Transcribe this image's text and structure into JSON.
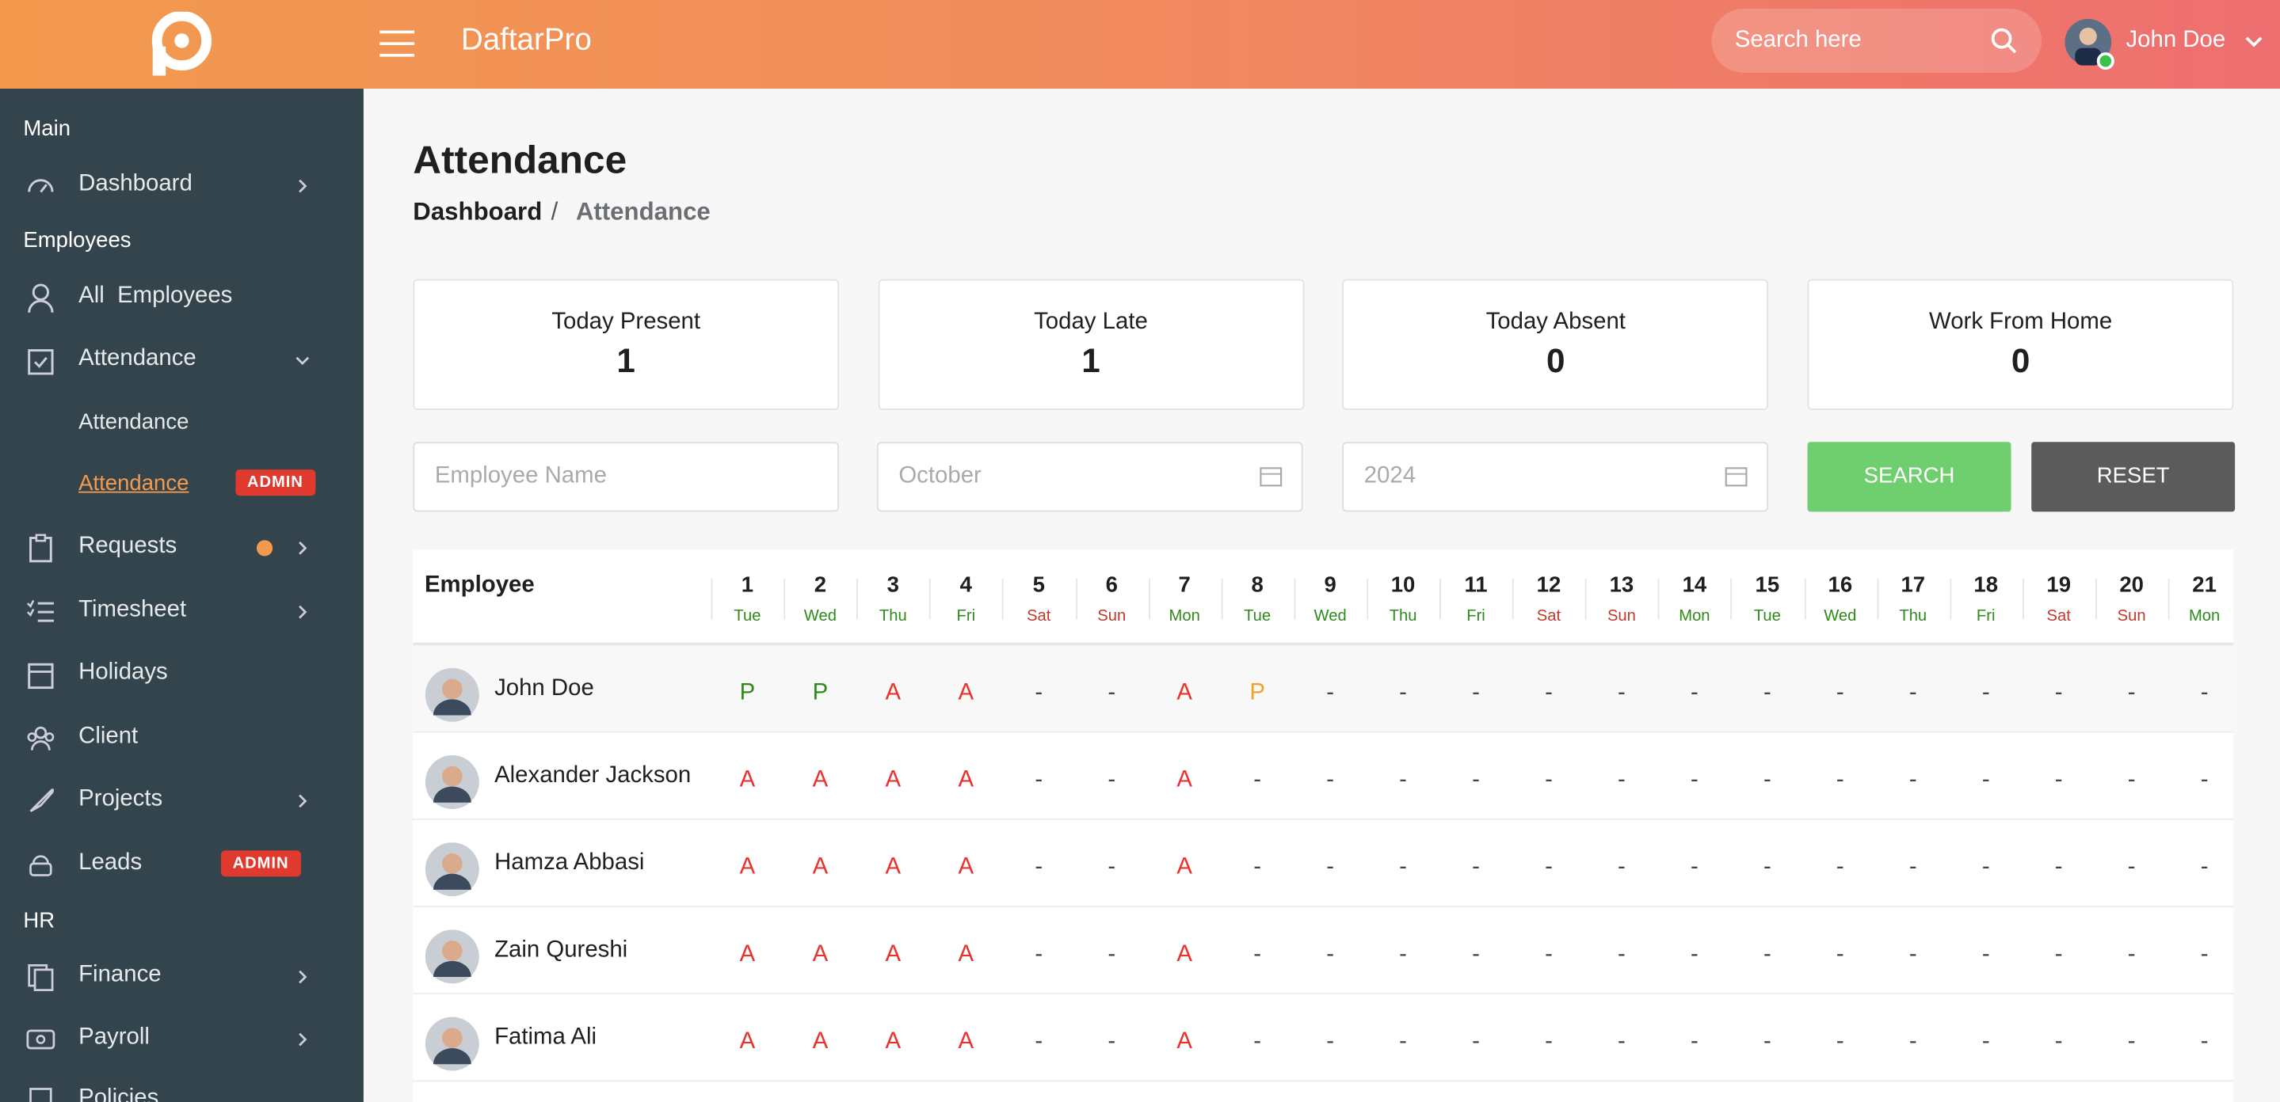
{
  "header": {
    "brand": "DaftarPro",
    "search_placeholder": "Search here",
    "user": "John Doe"
  },
  "sidebar": {
    "sections": [
      {
        "title": "Main",
        "items": [
          {
            "label": "Dashboard"
          }
        ]
      },
      {
        "title": "Employees",
        "items": [
          {
            "label": "All  Employees"
          },
          {
            "label": "Attendance",
            "children": [
              {
                "label": "Attendance"
              },
              {
                "label": "Attendance",
                "badge": "ADMIN"
              }
            ]
          },
          {
            "label": "Requests"
          },
          {
            "label": "Timesheet"
          },
          {
            "label": "Holidays"
          },
          {
            "label": "Client"
          },
          {
            "label": "Projects"
          },
          {
            "label": "Leads",
            "badge": "ADMIN"
          }
        ]
      },
      {
        "title": "HR",
        "items": [
          {
            "label": "Finance"
          },
          {
            "label": "Payroll"
          },
          {
            "label": "Policies"
          }
        ]
      }
    ]
  },
  "page": {
    "title": "Attendance",
    "breadcrumb": [
      "Dashboard",
      "Attendance"
    ],
    "separator": "/"
  },
  "stats": [
    {
      "label": "Today Present",
      "value": 1
    },
    {
      "label": "Today Late",
      "value": 1
    },
    {
      "label": "Today Absent",
      "value": 0
    },
    {
      "label": "Work From Home",
      "value": 0
    }
  ],
  "filters": {
    "employee_placeholder": "Employee  Name",
    "month": "October",
    "year": "2024",
    "search": "SEARCH",
    "reset": "RESET"
  },
  "table": {
    "employee_header": "Employee",
    "days": [
      {
        "day": 1,
        "weekday": "Tue"
      },
      {
        "day": 2,
        "weekday": "Wed"
      },
      {
        "day": 3,
        "weekday": "Thu"
      },
      {
        "day": 4,
        "weekday": "Fri"
      },
      {
        "day": 5,
        "weekday": "Sat"
      },
      {
        "day": 6,
        "weekday": "Sun"
      },
      {
        "day": 7,
        "weekday": "Mon"
      },
      {
        "day": 8,
        "weekday": "Tue"
      },
      {
        "day": 9,
        "weekday": "Wed"
      },
      {
        "day": 10,
        "weekday": "Thu"
      },
      {
        "day": 11,
        "weekday": "Fri"
      },
      {
        "day": 12,
        "weekday": "Sat"
      },
      {
        "day": 13,
        "weekday": "Sun"
      },
      {
        "day": 14,
        "weekday": "Mon"
      },
      {
        "day": 15,
        "weekday": "Tue"
      },
      {
        "day": 16,
        "weekday": "Wed"
      },
      {
        "day": 17,
        "weekday": "Thu"
      },
      {
        "day": 18,
        "weekday": "Fri"
      },
      {
        "day": 19,
        "weekday": "Sat"
      },
      {
        "day": 20,
        "weekday": "Sun"
      },
      {
        "day": 21,
        "weekday": "Mon"
      }
    ],
    "status_colors": {
      "P": "#2f8a1c",
      "A": "#e8322d",
      "-": "#444444"
    },
    "rows": [
      {
        "name": "John Doe",
        "cells": [
          "P",
          "P",
          "A",
          "A",
          "-",
          "-",
          "A",
          {
            "text": "P",
            "color": "#f0a030"
          },
          "-",
          "-",
          "-",
          "-",
          "-",
          "-",
          "-",
          "-",
          "-",
          "-",
          "-",
          "-",
          "-"
        ]
      },
      {
        "name": "Alexander Jackson",
        "cells": [
          "A",
          "A",
          "A",
          "A",
          "-",
          "-",
          "A",
          "-",
          "-",
          "-",
          "-",
          "-",
          "-",
          "-",
          "-",
          "-",
          "-",
          "-",
          "-",
          "-",
          "-"
        ]
      },
      {
        "name": "Hamza Abbasi",
        "cells": [
          "A",
          "A",
          "A",
          "A",
          "-",
          "-",
          "A",
          "-",
          "-",
          "-",
          "-",
          "-",
          "-",
          "-",
          "-",
          "-",
          "-",
          "-",
          "-",
          "-",
          "-"
        ]
      },
      {
        "name": "Zain Qureshi",
        "cells": [
          "A",
          "A",
          "A",
          "A",
          "-",
          "-",
          "A",
          "-",
          "-",
          "-",
          "-",
          "-",
          "-",
          "-",
          "-",
          "-",
          "-",
          "-",
          "-",
          "-",
          "-"
        ]
      },
      {
        "name": "Fatima Ali",
        "cells": [
          "A",
          "A",
          "A",
          "A",
          "-",
          "-",
          "A",
          "-",
          "-",
          "-",
          "-",
          "-",
          "-",
          "-",
          "-",
          "-",
          "-",
          "-",
          "-",
          "-",
          "-"
        ]
      }
    ]
  }
}
